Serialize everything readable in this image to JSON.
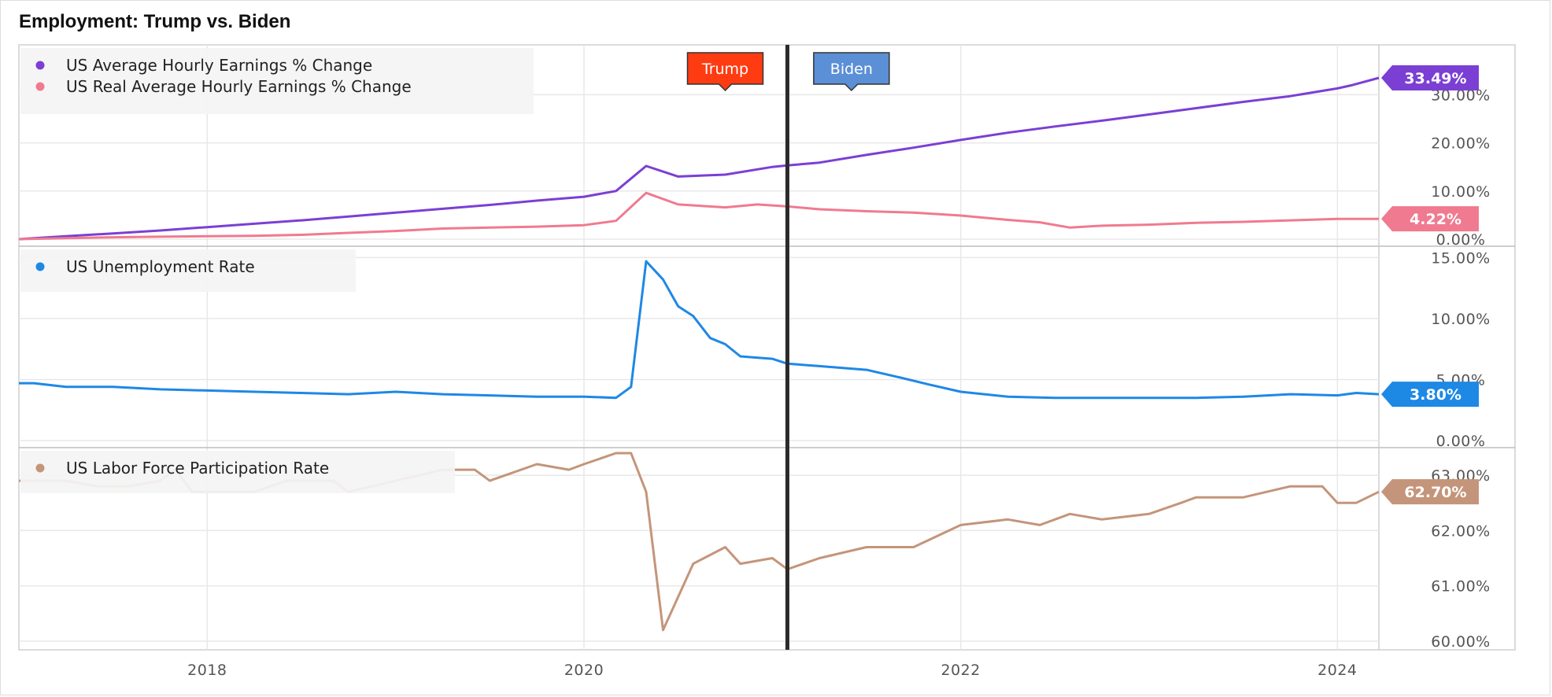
{
  "title": "Employment: Trump vs. Biden",
  "chart_data": {
    "type": "line",
    "title": "Employment: Trump vs. Biden",
    "x_range": [
      2017.0,
      2024.22
    ],
    "x_ticks": [
      {
        "value": 2018,
        "label": "2018"
      },
      {
        "value": 2020,
        "label": "2020"
      },
      {
        "value": 2022,
        "label": "2022"
      },
      {
        "value": 2024,
        "label": "2024"
      }
    ],
    "annotations": [
      {
        "label": "Trump",
        "x": 2020.75,
        "color": "#ff3b12"
      },
      {
        "label": "Biden",
        "x": 2021.42,
        "color": "#5b8fd6"
      }
    ],
    "divider_x": 2021.08,
    "panels": [
      {
        "id": "earnings",
        "ylim": [
          0,
          33.49
        ],
        "y_ticks": [
          {
            "value": 0,
            "label": "0.00%"
          },
          {
            "value": 10,
            "label": "10.00%"
          },
          {
            "value": 20,
            "label": "20.00%"
          },
          {
            "value": 30,
            "label": "30.00%"
          }
        ],
        "series": [
          {
            "name": "US Average Hourly Earnings % Change",
            "color": "#7b3fd4",
            "last_label": "33.49%",
            "points": [
              [
                2017.0,
                0.0
              ],
              [
                2017.25,
                0.6
              ],
              [
                2017.5,
                1.2
              ],
              [
                2017.75,
                1.8
              ],
              [
                2018.0,
                2.5
              ],
              [
                2018.25,
                3.2
              ],
              [
                2018.5,
                3.9
              ],
              [
                2018.75,
                4.7
              ],
              [
                2019.0,
                5.5
              ],
              [
                2019.25,
                6.3
              ],
              [
                2019.5,
                7.1
              ],
              [
                2019.75,
                8.0
              ],
              [
                2020.0,
                8.8
              ],
              [
                2020.17,
                10.0
              ],
              [
                2020.33,
                15.2
              ],
              [
                2020.5,
                13.0
              ],
              [
                2020.75,
                13.4
              ],
              [
                2021.0,
                15.0
              ],
              [
                2021.08,
                15.3
              ],
              [
                2021.25,
                15.9
              ],
              [
                2021.5,
                17.5
              ],
              [
                2021.75,
                19.0
              ],
              [
                2022.0,
                20.6
              ],
              [
                2022.25,
                22.1
              ],
              [
                2022.5,
                23.4
              ],
              [
                2022.75,
                24.6
              ],
              [
                2023.0,
                25.9
              ],
              [
                2023.25,
                27.2
              ],
              [
                2023.5,
                28.5
              ],
              [
                2023.75,
                29.7
              ],
              [
                2024.0,
                31.3
              ],
              [
                2024.08,
                32.0
              ],
              [
                2024.22,
                33.49
              ]
            ]
          },
          {
            "name": "US Real Average Hourly Earnings % Change",
            "color": "#f07a8f",
            "last_label": "4.22%",
            "points": [
              [
                2017.0,
                0.0
              ],
              [
                2017.25,
                0.2
              ],
              [
                2017.5,
                0.4
              ],
              [
                2017.75,
                0.5
              ],
              [
                2018.0,
                0.6
              ],
              [
                2018.25,
                0.7
              ],
              [
                2018.5,
                0.9
              ],
              [
                2018.75,
                1.3
              ],
              [
                2019.0,
                1.7
              ],
              [
                2019.25,
                2.2
              ],
              [
                2019.5,
                2.4
              ],
              [
                2019.75,
                2.6
              ],
              [
                2020.0,
                2.9
              ],
              [
                2020.17,
                3.8
              ],
              [
                2020.33,
                9.6
              ],
              [
                2020.5,
                7.2
              ],
              [
                2020.75,
                6.6
              ],
              [
                2020.92,
                7.2
              ],
              [
                2021.08,
                6.8
              ],
              [
                2021.25,
                6.2
              ],
              [
                2021.5,
                5.8
              ],
              [
                2021.75,
                5.5
              ],
              [
                2022.0,
                4.9
              ],
              [
                2022.25,
                4.0
              ],
              [
                2022.42,
                3.5
              ],
              [
                2022.58,
                2.4
              ],
              [
                2022.75,
                2.8
              ],
              [
                2023.0,
                3.0
              ],
              [
                2023.25,
                3.4
              ],
              [
                2023.5,
                3.6
              ],
              [
                2023.75,
                3.9
              ],
              [
                2024.0,
                4.2
              ],
              [
                2024.22,
                4.22
              ]
            ]
          }
        ]
      },
      {
        "id": "unemployment",
        "ylim": [
          0,
          15.8
        ],
        "y_ticks": [
          {
            "value": 0,
            "label": "0.00%"
          },
          {
            "value": 5,
            "label": "5.00%"
          },
          {
            "value": 10,
            "label": "10.00%"
          },
          {
            "value": 15,
            "label": "15.00%"
          }
        ],
        "series": [
          {
            "name": "US Unemployment Rate",
            "color": "#1e88e5",
            "last_label": "3.80%",
            "points": [
              [
                2017.0,
                4.7
              ],
              [
                2017.08,
                4.7
              ],
              [
                2017.25,
                4.4
              ],
              [
                2017.5,
                4.4
              ],
              [
                2017.75,
                4.2
              ],
              [
                2018.0,
                4.1
              ],
              [
                2018.25,
                4.0
              ],
              [
                2018.5,
                3.9
              ],
              [
                2018.75,
                3.8
              ],
              [
                2019.0,
                4.0
              ],
              [
                2019.25,
                3.8
              ],
              [
                2019.5,
                3.7
              ],
              [
                2019.75,
                3.6
              ],
              [
                2020.0,
                3.6
              ],
              [
                2020.17,
                3.5
              ],
              [
                2020.25,
                4.4
              ],
              [
                2020.33,
                14.7
              ],
              [
                2020.42,
                13.2
              ],
              [
                2020.5,
                11.0
              ],
              [
                2020.58,
                10.2
              ],
              [
                2020.67,
                8.4
              ],
              [
                2020.75,
                7.9
              ],
              [
                2020.83,
                6.9
              ],
              [
                2021.0,
                6.7
              ],
              [
                2021.08,
                6.3
              ],
              [
                2021.25,
                6.1
              ],
              [
                2021.5,
                5.8
              ],
              [
                2021.67,
                5.2
              ],
              [
                2021.83,
                4.6
              ],
              [
                2022.0,
                4.0
              ],
              [
                2022.25,
                3.6
              ],
              [
                2022.5,
                3.5
              ],
              [
                2022.75,
                3.5
              ],
              [
                2023.0,
                3.5
              ],
              [
                2023.25,
                3.5
              ],
              [
                2023.5,
                3.6
              ],
              [
                2023.75,
                3.8
              ],
              [
                2024.0,
                3.7
              ],
              [
                2024.1,
                3.9
              ],
              [
                2024.22,
                3.8
              ]
            ]
          }
        ]
      },
      {
        "id": "participation",
        "ylim": [
          60.0,
          63.3
        ],
        "y_ticks": [
          {
            "value": 60,
            "label": "60.00%"
          },
          {
            "value": 61,
            "label": "61.00%"
          },
          {
            "value": 62,
            "label": "62.00%"
          },
          {
            "value": 63,
            "label": "63.00%"
          }
        ],
        "series": [
          {
            "name": "US Labor Force Participation Rate",
            "color": "#c4957a",
            "last_label": "62.70%",
            "points": [
              [
                2017.0,
                62.9
              ],
              [
                2017.25,
                62.9
              ],
              [
                2017.42,
                62.8
              ],
              [
                2017.58,
                62.8
              ],
              [
                2017.75,
                62.9
              ],
              [
                2017.83,
                63.1
              ],
              [
                2017.92,
                62.7
              ],
              [
                2018.0,
                62.7
              ],
              [
                2018.25,
                62.7
              ],
              [
                2018.42,
                62.9
              ],
              [
                2018.67,
                62.9
              ],
              [
                2018.75,
                62.7
              ],
              [
                2019.0,
                62.9
              ],
              [
                2019.25,
                63.1
              ],
              [
                2019.42,
                63.1
              ],
              [
                2019.5,
                62.9
              ],
              [
                2019.75,
                63.2
              ],
              [
                2019.92,
                63.1
              ],
              [
                2020.0,
                63.2
              ],
              [
                2020.17,
                63.4
              ],
              [
                2020.25,
                63.4
              ],
              [
                2020.33,
                62.7
              ],
              [
                2020.42,
                60.2
              ],
              [
                2020.58,
                61.4
              ],
              [
                2020.75,
                61.7
              ],
              [
                2020.83,
                61.4
              ],
              [
                2021.0,
                61.5
              ],
              [
                2021.08,
                61.3
              ],
              [
                2021.25,
                61.5
              ],
              [
                2021.5,
                61.7
              ],
              [
                2021.75,
                61.7
              ],
              [
                2022.0,
                62.1
              ],
              [
                2022.25,
                62.2
              ],
              [
                2022.42,
                62.1
              ],
              [
                2022.58,
                62.3
              ],
              [
                2022.75,
                62.2
              ],
              [
                2023.0,
                62.3
              ],
              [
                2023.17,
                62.5
              ],
              [
                2023.25,
                62.6
              ],
              [
                2023.5,
                62.6
              ],
              [
                2023.75,
                62.8
              ],
              [
                2023.92,
                62.8
              ],
              [
                2024.0,
                62.5
              ],
              [
                2024.1,
                62.5
              ],
              [
                2024.22,
                62.7
              ]
            ]
          }
        ]
      }
    ]
  }
}
